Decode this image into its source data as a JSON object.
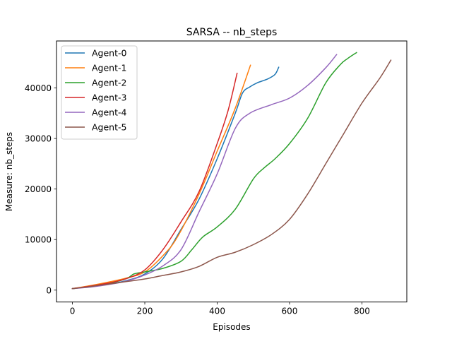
{
  "chart_data": {
    "type": "line",
    "title": "SARSA -- nb_steps",
    "xlabel": "Episodes",
    "ylabel": "Measure: nb_steps",
    "xlim": [
      -44,
      924
    ],
    "ylim": [
      -2350,
      49300
    ],
    "xticks": [
      0,
      200,
      400,
      600,
      800
    ],
    "yticks": [
      0,
      10000,
      20000,
      30000,
      40000
    ],
    "grid": false,
    "legend_position": "top-left",
    "series": [
      {
        "name": "Agent-0",
        "color": "#1f77b4",
        "x": [
          0,
          50,
          100,
          150,
          200,
          250,
          300,
          350,
          400,
          450,
          470,
          490,
          510,
          540,
          560,
          570
        ],
        "y": [
          300,
          700,
          1200,
          1900,
          3200,
          6200,
          12000,
          18000,
          26000,
          35000,
          39000,
          40200,
          41000,
          41800,
          42700,
          44100
        ]
      },
      {
        "name": "Agent-1",
        "color": "#ff7f0e",
        "x": [
          0,
          50,
          100,
          150,
          200,
          250,
          290,
          350,
          400,
          450,
          492
        ],
        "y": [
          300,
          900,
          1600,
          2400,
          3600,
          6800,
          10500,
          19000,
          27500,
          36000,
          44500
        ]
      },
      {
        "name": "Agent-2",
        "color": "#2ca02c",
        "x": [
          0,
          50,
          100,
          150,
          170,
          200,
          250,
          300,
          330,
          360,
          400,
          450,
          500,
          530,
          560,
          600,
          650,
          700,
          740,
          760,
          785
        ],
        "y": [
          300,
          700,
          1300,
          2300,
          3200,
          3600,
          4300,
          5700,
          8000,
          10500,
          12500,
          16000,
          22000,
          24200,
          26000,
          29000,
          34000,
          41000,
          44600,
          45800,
          47000
        ]
      },
      {
        "name": "Agent-3",
        "color": "#d62728",
        "x": [
          0,
          50,
          100,
          150,
          200,
          250,
          300,
          350,
          400,
          430,
          455
        ],
        "y": [
          300,
          800,
          1400,
          2300,
          4000,
          8000,
          13500,
          19500,
          29000,
          35500,
          42900
        ]
      },
      {
        "name": "Agent-4",
        "color": "#9467bd",
        "x": [
          0,
          50,
          100,
          150,
          200,
          250,
          300,
          350,
          400,
          450,
          490,
          550,
          600,
          650,
          700,
          730
        ],
        "y": [
          300,
          600,
          1100,
          1800,
          3000,
          4800,
          8000,
          15500,
          23000,
          32000,
          35000,
          36700,
          38000,
          40500,
          44000,
          46600
        ]
      },
      {
        "name": "Agent-5",
        "color": "#8c564b",
        "x": [
          0,
          50,
          100,
          150,
          200,
          250,
          300,
          350,
          400,
          450,
          500,
          550,
          600,
          650,
          700,
          750,
          800,
          850,
          880
        ],
        "y": [
          300,
          700,
          1200,
          1700,
          2200,
          2900,
          3600,
          4700,
          6500,
          7500,
          9000,
          11000,
          14000,
          19000,
          25000,
          31000,
          37000,
          42000,
          45500
        ]
      }
    ]
  }
}
